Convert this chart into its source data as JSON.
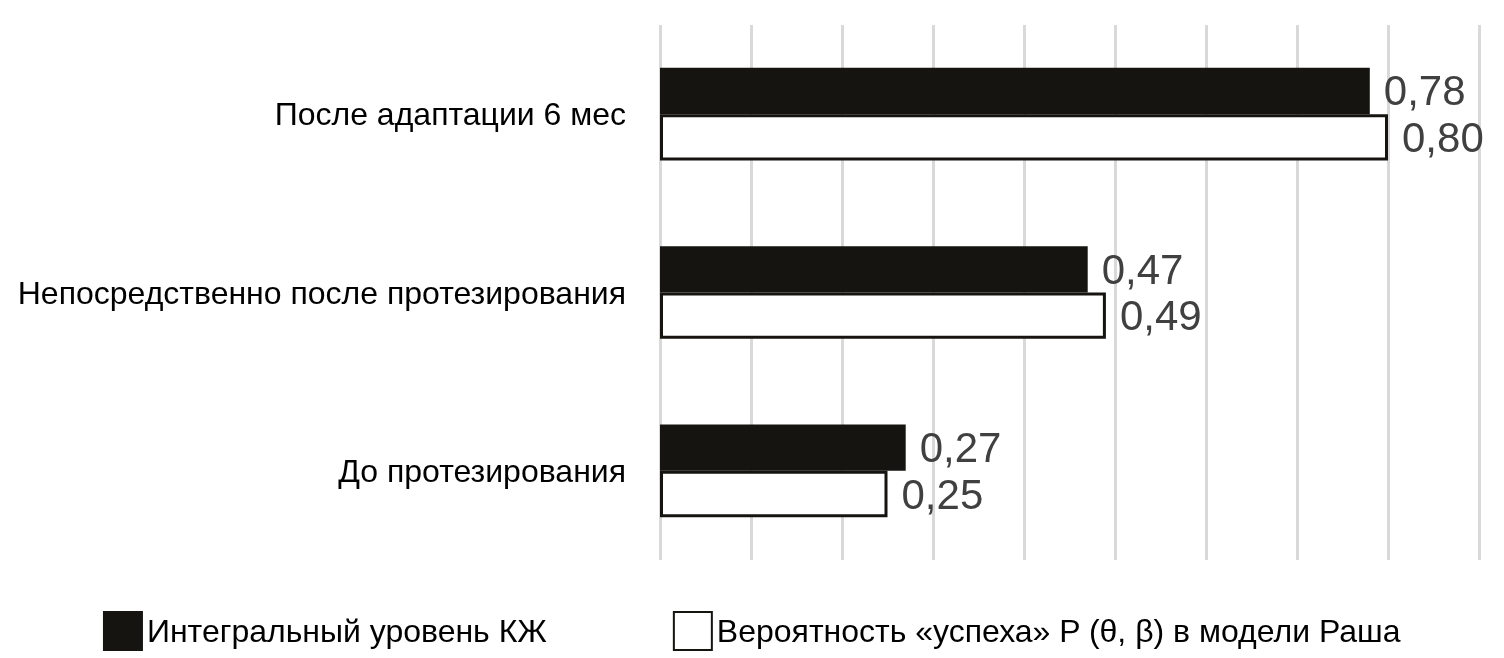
{
  "chart_data": {
    "type": "bar",
    "orientation": "horizontal",
    "categories": [
      "После адаптации 6 мес",
      "Непосредственно после протезирования",
      "До протезирования"
    ],
    "series": [
      {
        "name": "Интегральный уровень КЖ",
        "color": "#161410",
        "values": [
          0.78,
          0.47,
          0.27
        ],
        "value_labels": [
          "0,78",
          "0,47",
          "0,27"
        ]
      },
      {
        "name": "Вероятность «успеха» P (θ, β) в модели Раша",
        "color": "#ffffff",
        "values": [
          0.8,
          0.49,
          0.25
        ],
        "value_labels": [
          "0,80",
          "0,49",
          "0,25"
        ]
      }
    ],
    "xlim": [
      0,
      0.9
    ],
    "xticks": [
      {
        "value": 0,
        "label": null
      },
      {
        "value": 0.1,
        "label": null
      },
      {
        "value": 0.2,
        "label": null
      },
      {
        "value": 0.3,
        "label": null
      },
      {
        "value": 0.4,
        "label": null
      },
      {
        "value": 0.5,
        "label": null
      },
      {
        "value": 0.6,
        "label": null
      },
      {
        "value": 0.7,
        "label": null
      },
      {
        "value": 0.8,
        "label": null
      },
      {
        "value": 0.9,
        "label": null
      }
    ],
    "grid": "x",
    "legend": "bottom",
    "tick_labels": "y"
  }
}
